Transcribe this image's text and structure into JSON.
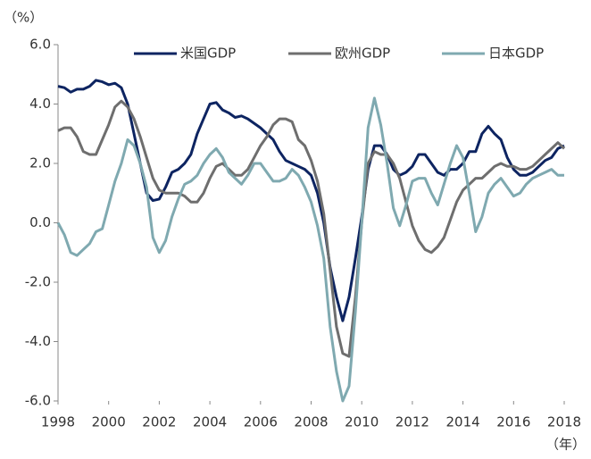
{
  "chart_data": {
    "type": "line",
    "y_label": "（%）",
    "x_label": "（年）",
    "x": [
      1998,
      1998.25,
      1998.5,
      1998.75,
      1999,
      1999.25,
      1999.5,
      1999.75,
      2000,
      2000.25,
      2000.5,
      2000.75,
      2001,
      2001.25,
      2001.5,
      2001.75,
      2002,
      2002.25,
      2002.5,
      2002.75,
      2003,
      2003.25,
      2003.5,
      2003.75,
      2004,
      2004.25,
      2004.5,
      2004.75,
      2005,
      2005.25,
      2005.5,
      2005.75,
      2006,
      2006.25,
      2006.5,
      2006.75,
      2007,
      2007.25,
      2007.5,
      2007.75,
      2008,
      2008.25,
      2008.5,
      2008.75,
      2009,
      2009.25,
      2009.5,
      2009.75,
      2010,
      2010.25,
      2010.5,
      2010.75,
      2011,
      2011.25,
      2011.5,
      2011.75,
      2012,
      2012.25,
      2012.5,
      2012.75,
      2013,
      2013.25,
      2013.5,
      2013.75,
      2014,
      2014.25,
      2014.5,
      2014.75,
      2015,
      2015.25,
      2015.5,
      2015.75,
      2016,
      2016.25,
      2016.5,
      2016.75,
      2017,
      2017.25,
      2017.5,
      2017.75,
      2018
    ],
    "series": [
      {
        "name": "米国GDP",
        "color": "#0d2461",
        "values": [
          4.6,
          4.55,
          4.4,
          4.5,
          4.5,
          4.6,
          4.8,
          4.75,
          4.65,
          4.7,
          4.55,
          4.0,
          3.0,
          2.0,
          1.0,
          0.75,
          0.8,
          1.2,
          1.7,
          1.8,
          2.0,
          2.3,
          3.0,
          3.5,
          4.0,
          4.05,
          3.8,
          3.7,
          3.55,
          3.6,
          3.5,
          3.35,
          3.2,
          3.0,
          2.8,
          2.4,
          2.1,
          2.0,
          1.9,
          1.8,
          1.6,
          1.0,
          0.0,
          -1.5,
          -2.5,
          -3.3,
          -2.5,
          -1.2,
          0.2,
          1.8,
          2.6,
          2.6,
          2.3,
          1.8,
          1.6,
          1.7,
          1.9,
          2.3,
          2.3,
          2.0,
          1.7,
          1.6,
          1.8,
          1.8,
          2.0,
          2.4,
          2.4,
          3.0,
          3.25,
          3.0,
          2.8,
          2.2,
          1.8,
          1.6,
          1.6,
          1.7,
          1.9,
          2.1,
          2.2,
          2.5,
          2.6
        ]
      },
      {
        "name": "欧州GDP",
        "color": "#6e6e6e",
        "values": [
          3.1,
          3.2,
          3.2,
          2.9,
          2.4,
          2.3,
          2.3,
          2.8,
          3.3,
          3.9,
          4.1,
          3.9,
          3.5,
          2.9,
          2.2,
          1.5,
          1.1,
          1.0,
          1.0,
          1.0,
          0.9,
          0.7,
          0.7,
          1.0,
          1.5,
          1.9,
          2.0,
          1.8,
          1.6,
          1.6,
          1.8,
          2.2,
          2.6,
          2.9,
          3.3,
          3.5,
          3.5,
          3.4,
          2.8,
          2.6,
          2.1,
          1.4,
          0.3,
          -1.6,
          -3.5,
          -4.4,
          -4.5,
          -2.5,
          0.0,
          2.0,
          2.4,
          2.3,
          2.3,
          2.0,
          1.5,
          0.7,
          -0.1,
          -0.6,
          -0.9,
          -1.0,
          -0.8,
          -0.5,
          0.1,
          0.7,
          1.1,
          1.3,
          1.5,
          1.5,
          1.7,
          1.9,
          2.0,
          1.9,
          1.9,
          1.8,
          1.8,
          1.9,
          2.1,
          2.3,
          2.5,
          2.7,
          2.5
        ]
      },
      {
        "name": "日本GDP",
        "color": "#7fa9b0",
        "values": [
          0.0,
          -0.4,
          -1.0,
          -1.1,
          -0.9,
          -0.7,
          -0.3,
          -0.2,
          0.6,
          1.4,
          2.0,
          2.8,
          2.6,
          2.0,
          1.2,
          -0.5,
          -1.0,
          -0.6,
          0.2,
          0.8,
          1.3,
          1.4,
          1.6,
          2.0,
          2.3,
          2.5,
          2.2,
          1.7,
          1.5,
          1.3,
          1.6,
          2.0,
          2.0,
          1.7,
          1.4,
          1.4,
          1.5,
          1.8,
          1.6,
          1.2,
          0.7,
          -0.1,
          -1.2,
          -3.5,
          -5.0,
          -6.0,
          -5.5,
          -3.0,
          0.0,
          3.2,
          4.2,
          3.3,
          2.0,
          0.5,
          -0.1,
          0.6,
          1.4,
          1.5,
          1.5,
          1.0,
          0.6,
          1.3,
          2.0,
          2.6,
          2.2,
          1.0,
          -0.3,
          0.2,
          1.0,
          1.3,
          1.5,
          1.2,
          0.9,
          1.0,
          1.3,
          1.5,
          1.6,
          1.7,
          1.8,
          1.6,
          1.6
        ]
      }
    ],
    "xlim": [
      1998,
      2018
    ],
    "xticks": [
      1998,
      2000,
      2002,
      2004,
      2006,
      2008,
      2010,
      2012,
      2014,
      2016,
      2018
    ],
    "ylim": [
      -6,
      6
    ],
    "yticks": [
      {
        "value": -6,
        "label": "-6.0"
      },
      {
        "value": -4,
        "label": "-4.0"
      },
      {
        "value": -2,
        "label": "-2.0"
      },
      {
        "value": 0,
        "label": "0.0"
      },
      {
        "value": 2,
        "label": "2.0"
      },
      {
        "value": 4,
        "label": "4.0"
      },
      {
        "value": 6,
        "label": "6.0"
      }
    ],
    "legend": "top"
  }
}
